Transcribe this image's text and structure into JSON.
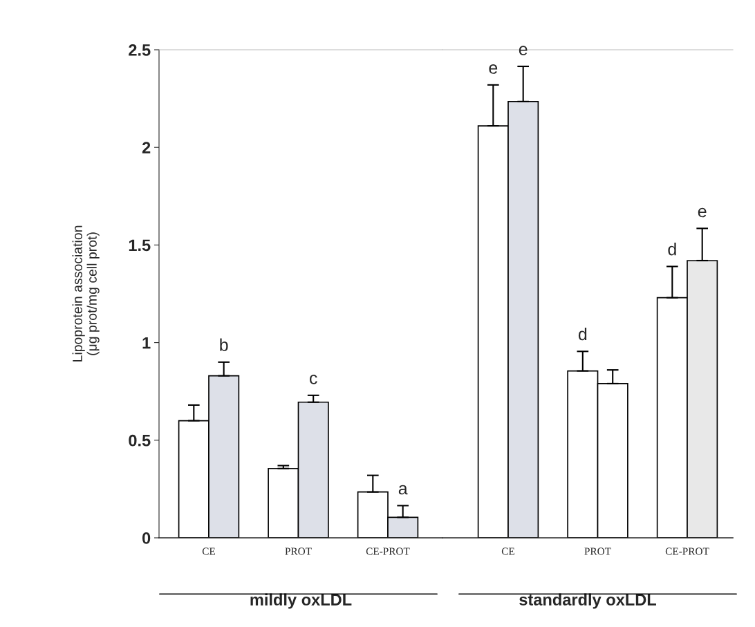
{
  "chart_data": [
    {
      "type": "bar",
      "ylabel": "Lipoprotein association\n(μg prot/mg cell prot)",
      "xlabel": "mildly oxLDL",
      "categories": [
        "CE",
        "PROT",
        "CE-PROT"
      ],
      "ylim": [
        0,
        2.5
      ],
      "yticks": [
        0,
        0.5,
        1,
        1.5,
        2,
        2.5
      ],
      "series": [
        {
          "color": "#ffffff",
          "values": [
            0.6,
            0.355,
            0.235
          ],
          "errors": [
            0.08,
            0.015,
            0.085
          ]
        },
        {
          "color": "#dde0e8",
          "values": [
            0.83,
            0.695,
            0.105
          ],
          "errors": [
            0.07,
            0.035,
            0.06
          ],
          "value_labels": [
            "b",
            "c",
            "a"
          ]
        }
      ]
    },
    {
      "type": "bar",
      "xlabel": "standardly oxLDL",
      "categories": [
        "CE",
        "PROT",
        "CE-PROT"
      ],
      "ylim": [
        0,
        2.5
      ],
      "tick_labels": "x",
      "series": [
        {
          "color": "#ffffff",
          "values": [
            2.11,
            0.855,
            1.23
          ],
          "errors": [
            0.21,
            0.1,
            0.16
          ],
          "value_labels": [
            "e",
            "d",
            "d"
          ]
        },
        {
          "colors": [
            "#dde0e8",
            "#ffffff",
            "#e8e8e8"
          ],
          "values": [
            2.235,
            0.79,
            1.42
          ],
          "errors": [
            0.18,
            0.07,
            0.165
          ],
          "value_labels": [
            "e",
            null,
            "e"
          ]
        }
      ]
    }
  ]
}
